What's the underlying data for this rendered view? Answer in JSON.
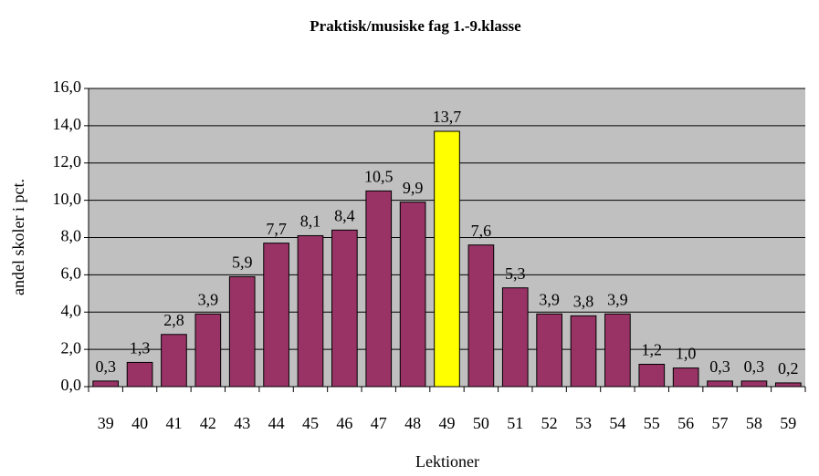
{
  "chart_data": {
    "type": "bar",
    "title": "Praktisk/musiske fag 1.-9.klasse",
    "x_label": "Lektioner",
    "y_label": "andel skoler i pct.",
    "categories": [
      "39",
      "40",
      "41",
      "42",
      "43",
      "44",
      "45",
      "46",
      "47",
      "48",
      "49",
      "50",
      "51",
      "52",
      "53",
      "54",
      "55",
      "56",
      "57",
      "58",
      "59"
    ],
    "values": [
      0.3,
      1.3,
      2.8,
      3.9,
      5.9,
      7.7,
      8.1,
      8.4,
      10.5,
      9.9,
      13.7,
      7.6,
      5.3,
      3.9,
      3.8,
      3.9,
      1.2,
      1.0,
      0.3,
      0.3,
      0.2
    ],
    "value_labels": [
      "0,3",
      "1,3",
      "2,8",
      "3,9",
      "5,9",
      "7,7",
      "8,1",
      "8,4",
      "10,5",
      "9,9",
      "13,7",
      "7,6",
      "5,3",
      "3,9",
      "3,8",
      "3,9",
      "1,2",
      "1,0",
      "0,3",
      "0,3",
      "0,2"
    ],
    "colors": [
      "#993366",
      "#993366",
      "#993366",
      "#993366",
      "#993366",
      "#993366",
      "#993366",
      "#993366",
      "#993366",
      "#993366",
      "#ffff00",
      "#993366",
      "#993366",
      "#993366",
      "#993366",
      "#993366",
      "#993366",
      "#993366",
      "#993366",
      "#993366",
      "#993366"
    ],
    "plot_background": "#c0c0c0",
    "ylim": [
      0,
      16
    ],
    "yticks": [
      {
        "value": 0,
        "label": "0,0"
      },
      {
        "value": 2,
        "label": "2,0"
      },
      {
        "value": 4,
        "label": "4,0"
      },
      {
        "value": 6,
        "label": "6,0"
      },
      {
        "value": 8,
        "label": "8,0"
      },
      {
        "value": 10,
        "label": "10,0"
      },
      {
        "value": 12,
        "label": "12,0"
      },
      {
        "value": 14,
        "label": "14,0"
      },
      {
        "value": 16,
        "label": "16,0"
      }
    ],
    "grid": true
  }
}
